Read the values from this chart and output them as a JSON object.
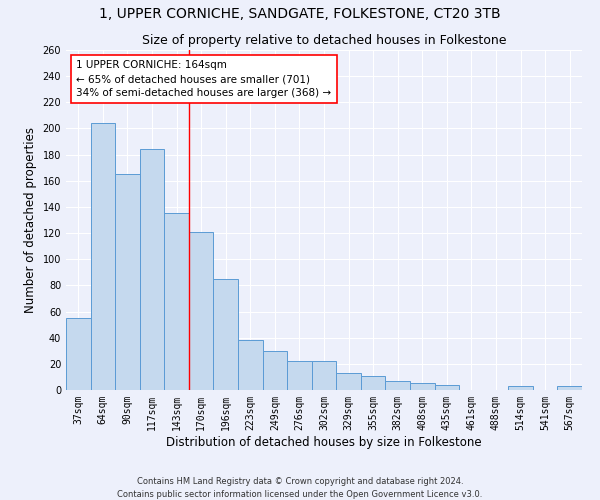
{
  "title": "1, UPPER CORNICHE, SANDGATE, FOLKESTONE, CT20 3TB",
  "subtitle": "Size of property relative to detached houses in Folkestone",
  "xlabel": "Distribution of detached houses by size in Folkestone",
  "ylabel": "Number of detached properties",
  "categories": [
    "37sqm",
    "64sqm",
    "90sqm",
    "117sqm",
    "143sqm",
    "170sqm",
    "196sqm",
    "223sqm",
    "249sqm",
    "276sqm",
    "302sqm",
    "329sqm",
    "355sqm",
    "382sqm",
    "408sqm",
    "435sqm",
    "461sqm",
    "488sqm",
    "514sqm",
    "541sqm",
    "567sqm"
  ],
  "values": [
    55,
    204,
    165,
    184,
    135,
    121,
    85,
    38,
    30,
    22,
    22,
    13,
    11,
    7,
    5,
    4,
    0,
    0,
    3,
    0,
    3
  ],
  "bar_color": "#c5d9ee",
  "bar_edge_color": "#5b9bd5",
  "property_line_x": 4.5,
  "annotation_text": "1 UPPER CORNICHE: 164sqm\n← 65% of detached houses are smaller (701)\n34% of semi-detached houses are larger (368) →",
  "annotation_box_color": "white",
  "annotation_border_color": "red",
  "vline_color": "red",
  "ylim": [
    0,
    260
  ],
  "yticks": [
    0,
    20,
    40,
    60,
    80,
    100,
    120,
    140,
    160,
    180,
    200,
    220,
    240,
    260
  ],
  "footnote1": "Contains HM Land Registry data © Crown copyright and database right 2024.",
  "footnote2": "Contains public sector information licensed under the Open Government Licence v3.0.",
  "background_color": "#edf0fb",
  "title_fontsize": 10,
  "subtitle_fontsize": 9,
  "tick_fontsize": 7,
  "ylabel_fontsize": 8.5,
  "xlabel_fontsize": 8.5,
  "annotation_fontsize": 7.5,
  "footnote_fontsize": 6
}
